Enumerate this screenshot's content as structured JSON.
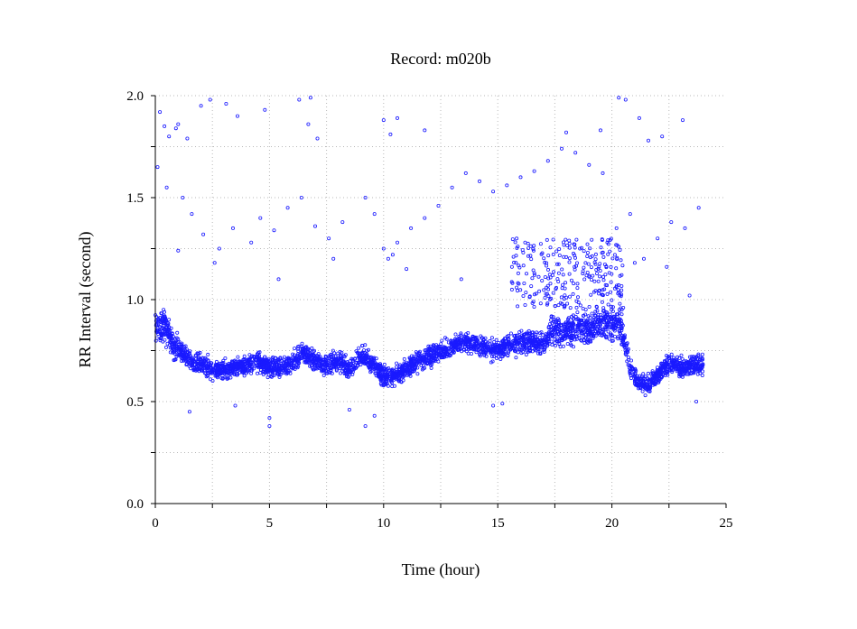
{
  "chart_data": {
    "type": "scatter",
    "title": "Record:  m020b",
    "xlabel": "Time (hour)",
    "ylabel": "RR Interval (second)",
    "xlim": [
      0,
      25
    ],
    "ylim": [
      0,
      2
    ],
    "x_ticks": [
      0,
      5,
      10,
      15,
      20,
      25
    ],
    "y_ticks": [
      0.0,
      0.5,
      1.0,
      1.5,
      2.0
    ],
    "x_tick_labels": [
      "0",
      "5",
      "10",
      "15",
      "20",
      "25"
    ],
    "y_tick_labels": [
      "0.0",
      "0.5",
      "1.0",
      "1.5",
      "2.0"
    ],
    "grid": true,
    "marker_color": "#1a1aff",
    "trend": [
      [
        0.0,
        0.85
      ],
      [
        0.4,
        0.88
      ],
      [
        0.8,
        0.78
      ],
      [
        1.2,
        0.74
      ],
      [
        1.6,
        0.7
      ],
      [
        2.0,
        0.68
      ],
      [
        2.5,
        0.66
      ],
      [
        3.0,
        0.65
      ],
      [
        3.5,
        0.67
      ],
      [
        4.0,
        0.68
      ],
      [
        4.5,
        0.7
      ],
      [
        5.0,
        0.66
      ],
      [
        5.5,
        0.68
      ],
      [
        6.0,
        0.69
      ],
      [
        6.5,
        0.74
      ],
      [
        7.0,
        0.7
      ],
      [
        7.5,
        0.68
      ],
      [
        8.0,
        0.7
      ],
      [
        8.5,
        0.66
      ],
      [
        9.0,
        0.73
      ],
      [
        9.5,
        0.69
      ],
      [
        10.0,
        0.62
      ],
      [
        10.5,
        0.63
      ],
      [
        11.0,
        0.66
      ],
      [
        11.5,
        0.7
      ],
      [
        12.0,
        0.72
      ],
      [
        12.5,
        0.74
      ],
      [
        13.0,
        0.77
      ],
      [
        13.5,
        0.79
      ],
      [
        14.0,
        0.78
      ],
      [
        14.5,
        0.77
      ],
      [
        15.0,
        0.75
      ],
      [
        15.5,
        0.78
      ],
      [
        16.0,
        0.8
      ],
      [
        16.5,
        0.79
      ],
      [
        17.0,
        0.78
      ],
      [
        17.5,
        0.86
      ],
      [
        18.0,
        0.84
      ],
      [
        18.5,
        0.87
      ],
      [
        19.0,
        0.86
      ],
      [
        19.5,
        0.88
      ],
      [
        20.0,
        0.88
      ],
      [
        20.4,
        0.87
      ],
      [
        20.8,
        0.66
      ],
      [
        21.2,
        0.6
      ],
      [
        21.6,
        0.58
      ],
      [
        22.0,
        0.63
      ],
      [
        22.5,
        0.69
      ],
      [
        23.0,
        0.66
      ],
      [
        23.5,
        0.68
      ],
      [
        24.0,
        0.68
      ]
    ],
    "outliers": [
      [
        0.1,
        1.65
      ],
      [
        0.2,
        1.92
      ],
      [
        0.4,
        1.85
      ],
      [
        0.6,
        1.8
      ],
      [
        0.9,
        1.84
      ],
      [
        1.0,
        1.86
      ],
      [
        1.4,
        1.79
      ],
      [
        2.0,
        1.95
      ],
      [
        2.4,
        1.98
      ],
      [
        3.1,
        1.96
      ],
      [
        3.6,
        1.9
      ],
      [
        4.8,
        1.93
      ],
      [
        6.3,
        1.98
      ],
      [
        6.8,
        1.99
      ],
      [
        6.7,
        1.86
      ],
      [
        7.1,
        1.79
      ],
      [
        10.0,
        1.88
      ],
      [
        10.3,
        1.81
      ],
      [
        10.6,
        1.89
      ],
      [
        11.8,
        1.83
      ],
      [
        18.0,
        1.82
      ],
      [
        19.5,
        1.83
      ],
      [
        20.3,
        1.99
      ],
      [
        20.6,
        1.98
      ],
      [
        21.2,
        1.89
      ],
      [
        21.6,
        1.78
      ],
      [
        22.2,
        1.8
      ],
      [
        23.1,
        1.88
      ],
      [
        0.5,
        1.55
      ],
      [
        1.2,
        1.5
      ],
      [
        1.6,
        1.42
      ],
      [
        2.1,
        1.32
      ],
      [
        2.8,
        1.25
      ],
      [
        3.4,
        1.35
      ],
      [
        4.2,
        1.28
      ],
      [
        4.6,
        1.4
      ],
      [
        5.2,
        1.34
      ],
      [
        5.8,
        1.45
      ],
      [
        6.4,
        1.5
      ],
      [
        7.0,
        1.36
      ],
      [
        7.6,
        1.3
      ],
      [
        8.2,
        1.38
      ],
      [
        9.2,
        1.5
      ],
      [
        9.6,
        1.42
      ],
      [
        10.0,
        1.25
      ],
      [
        10.2,
        1.2
      ],
      [
        10.4,
        1.22
      ],
      [
        10.6,
        1.28
      ],
      [
        11.2,
        1.35
      ],
      [
        11.8,
        1.4
      ],
      [
        12.4,
        1.46
      ],
      [
        13.0,
        1.55
      ],
      [
        13.6,
        1.62
      ],
      [
        14.2,
        1.58
      ],
      [
        14.8,
        1.53
      ],
      [
        15.4,
        1.56
      ],
      [
        16.0,
        1.6
      ],
      [
        16.6,
        1.63
      ],
      [
        17.2,
        1.68
      ],
      [
        17.8,
        1.74
      ],
      [
        18.4,
        1.72
      ],
      [
        19.0,
        1.66
      ],
      [
        19.6,
        1.62
      ],
      [
        20.2,
        1.35
      ],
      [
        20.8,
        1.42
      ],
      [
        21.4,
        1.2
      ],
      [
        22.0,
        1.3
      ],
      [
        22.6,
        1.38
      ],
      [
        23.2,
        1.35
      ],
      [
        23.8,
        1.45
      ],
      [
        1.0,
        1.24
      ],
      [
        2.6,
        1.18
      ],
      [
        5.4,
        1.1
      ],
      [
        7.8,
        1.2
      ],
      [
        11.0,
        1.15
      ],
      [
        13.4,
        1.1
      ],
      [
        15.8,
        1.18
      ],
      [
        16.2,
        1.28
      ],
      [
        17.4,
        1.12
      ],
      [
        18.6,
        1.25
      ],
      [
        19.8,
        1.28
      ],
      [
        21.0,
        1.18
      ],
      [
        22.4,
        1.16
      ],
      [
        23.4,
        1.02
      ],
      [
        5.0,
        0.38
      ],
      [
        5.0,
        0.42
      ],
      [
        9.2,
        0.38
      ],
      [
        9.6,
        0.43
      ],
      [
        1.5,
        0.45
      ],
      [
        14.8,
        0.48
      ],
      [
        15.2,
        0.49
      ],
      [
        3.5,
        0.48
      ],
      [
        8.5,
        0.46
      ],
      [
        23.7,
        0.5
      ]
    ]
  }
}
